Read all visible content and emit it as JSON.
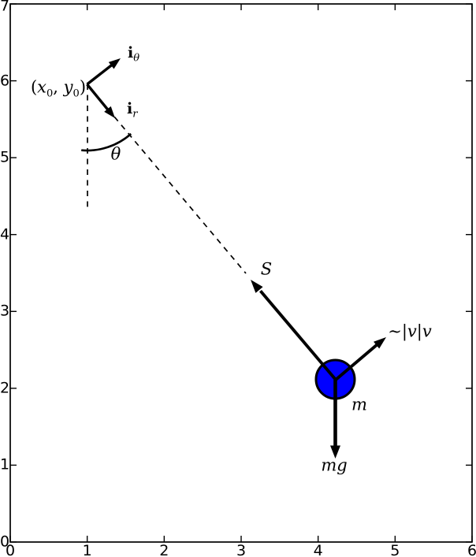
{
  "figure": {
    "kind": "pendulum free-body diagram",
    "background": "#ffffff",
    "frame_color": "#000000",
    "mass_fill": "#0000ff",
    "line_color": "#000000",
    "axes": {
      "xlim": [
        0,
        6
      ],
      "ylim": [
        0,
        7
      ],
      "xtick_labels": [
        "0",
        "1",
        "2",
        "3",
        "4",
        "5",
        "6"
      ],
      "ytick_labels": [
        "0",
        "1",
        "2",
        "3",
        "4",
        "5",
        "6",
        "7"
      ]
    },
    "labels": {
      "pivot": {
        "open": "(",
        "x": "x",
        "sub1": "0",
        "comma": ", ",
        "y": "y",
        "sub2": "0",
        "close": ")"
      },
      "i_theta": {
        "main": "i",
        "sub": "θ"
      },
      "i_r": {
        "main": "i",
        "sub": "r"
      },
      "theta": "θ",
      "tension": "S",
      "drag": {
        "tilde": "∼",
        "bar1": "|",
        "v1": "v",
        "bar2": "|",
        "v2": "v"
      },
      "mass": "m",
      "weight": "mg"
    },
    "geometry_data_coords": {
      "pivot": [
        1.0,
        5.95
      ],
      "mass_center": [
        4.22,
        2.12
      ],
      "mass_radius": 0.25,
      "string_angle_from_vertical_deg": 40,
      "tension_arrow_tip": [
        3.12,
        3.41
      ],
      "drag_arrow_tip": [
        4.88,
        2.66
      ],
      "weight_arrow_tip": [
        4.22,
        1.09
      ],
      "vertical_reference_end": [
        1.0,
        4.33
      ],
      "i_theta_tip": [
        1.43,
        6.29
      ],
      "i_r_tip": [
        1.36,
        5.51
      ]
    }
  }
}
